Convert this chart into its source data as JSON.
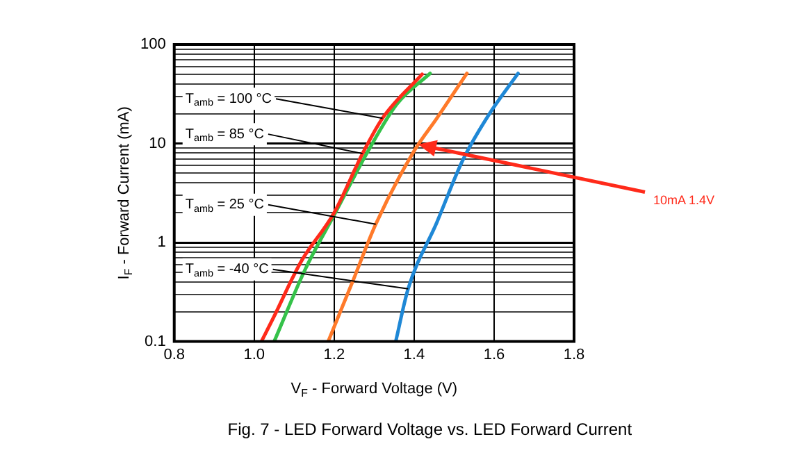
{
  "chart_data": {
    "type": "line",
    "title": "Fig. 7 - LED Forward Voltage vs. LED Forward Current",
    "xlabel": "V$_{F}$ - Forward Voltage (V)",
    "ylabel": "I$_{F}$ - Forward Current (mA)",
    "series": [
      {
        "color": "#ff2a1a",
        "x": [
          1.018,
          1.05,
          1.096,
          1.12,
          1.2,
          1.271,
          1.321,
          1.42
        ],
        "values": [
          0.1,
          0.18,
          0.44,
          0.67,
          2.0,
          7.9,
          18,
          50
        ]
      },
      {
        "color": "#35c24a",
        "x": [
          1.05,
          1.128,
          1.2,
          1.285,
          1.357,
          1.44
        ],
        "values": [
          0.1,
          0.54,
          1.9,
          8.4,
          25,
          51
        ]
      },
      {
        "color": "#ff7a2a",
        "x": [
          1.185,
          1.25,
          1.304,
          1.4,
          1.457,
          1.532
        ],
        "values": [
          0.1,
          0.44,
          1.53,
          8.4,
          18,
          51
        ]
      },
      {
        "color": "#1f88d6",
        "x": [
          1.354,
          1.385,
          1.457,
          1.521,
          1.585,
          1.66
        ],
        "values": [
          0.1,
          0.34,
          1.6,
          6.7,
          19,
          51
        ]
      }
    ],
    "annotations": [
      {
        "text": "T$_{amb}$ = 100 °C",
        "x": 1.321,
        "y": 18
      },
      {
        "text": "T$_{amb}$ = 85 °C",
        "x": 1.271,
        "y": 7.9
      },
      {
        "text": "T$_{amb}$ = 25 °C",
        "x": 1.304,
        "y": 1.53
      },
      {
        "text": "T$_{amb}$ = -40 °C",
        "x": 1.385,
        "y": 0.34
      },
      "10mA 1.4V"
    ],
    "xlim": [
      0.8,
      1.8
    ],
    "xticks": [
      {
        "value": 0.8,
        "label": "0.8"
      },
      {
        "value": 1.0,
        "label": "1.0"
      },
      {
        "value": 1.2,
        "label": "1.2"
      },
      {
        "value": 1.4,
        "label": "1.4"
      },
      {
        "value": 1.6,
        "label": "1.6"
      },
      {
        "value": 1.8,
        "label": "1.8"
      }
    ],
    "ylim": [
      0.1,
      100
    ],
    "yticks": [
      0.1,
      1,
      10,
      100
    ],
    "log": "y",
    "grid": true,
    "legend": false,
    "marker": "none",
    "line_style": "solid"
  }
}
